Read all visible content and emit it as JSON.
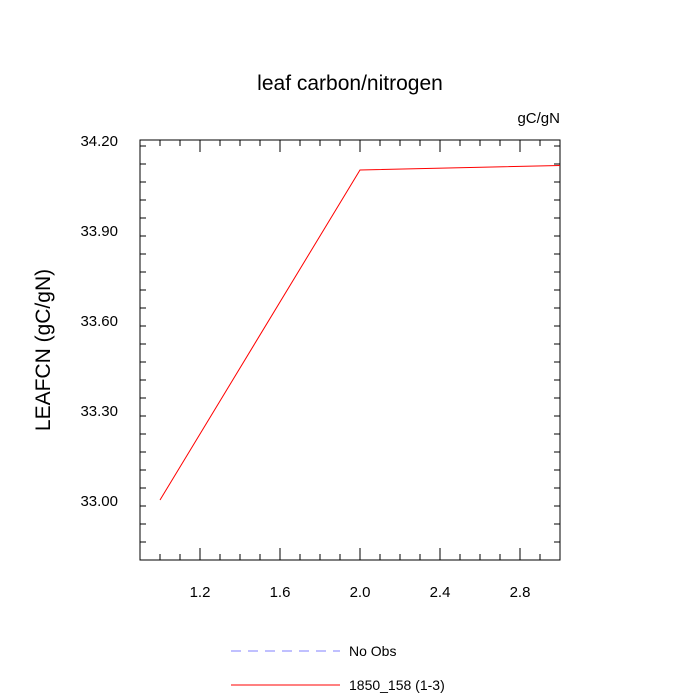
{
  "chart_data": {
    "type": "line",
    "title": "leaf carbon/nitrogen",
    "units_label": "gC/gN",
    "ylabel": "LEAFCN  (gC/gN)",
    "xlabel": "",
    "xlim": [
      0.9,
      3.0
    ],
    "ylim": [
      32.8,
      34.2
    ],
    "xticks": [
      1.2,
      1.6,
      2.0,
      2.4,
      2.8
    ],
    "xtick_labels": [
      "1.2",
      "1.6",
      "2.0",
      "2.4",
      "2.8"
    ],
    "yticks": [
      33.0,
      33.3,
      33.6,
      33.9,
      34.2
    ],
    "ytick_labels": [
      "33.00",
      "33.30",
      "33.60",
      "33.90",
      "34.20"
    ],
    "grid": false,
    "legend_position": "bottom-center",
    "series": [
      {
        "name": "1850_158 (1-3)",
        "color": "#ff0000",
        "dash": "solid",
        "x": [
          1.0,
          2.0,
          3.0
        ],
        "y": [
          33.0,
          34.1,
          34.115
        ]
      }
    ],
    "legend": [
      {
        "label": "No Obs",
        "color": "#8080ff",
        "dash": "dashed"
      },
      {
        "label": "1850_158 (1-3)",
        "color": "#ff0000",
        "dash": "solid"
      }
    ]
  }
}
